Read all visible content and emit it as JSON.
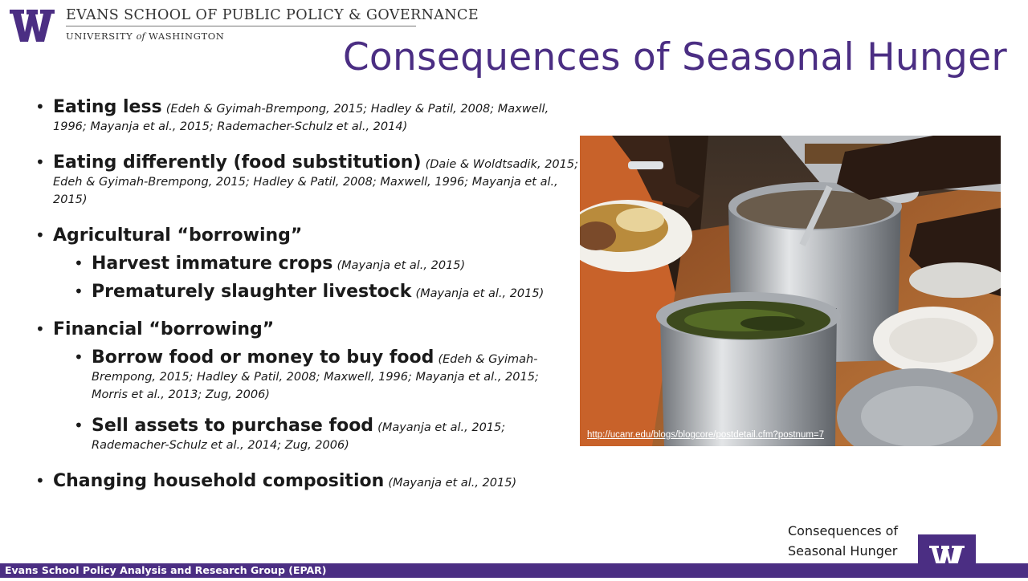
{
  "header": {
    "school": "EVANS SCHOOL OF PUBLIC POLICY & GOVERNANCE",
    "university_pre": "UNIVERSITY ",
    "university_of": "of",
    "university_post": " WASHINGTON"
  },
  "title": "Consequences of Seasonal Hunger",
  "bullets": [
    {
      "text": "Eating less",
      "citation": "(Edeh & Gyimah-Brempong, 2015; Hadley & Patil, 2008; Maxwell, 1996; Mayanja et al., 2015; Rademacher-Schulz et al., 2014)"
    },
    {
      "text": "Eating differently (food substitution)",
      "citation": "(Daie & Woldtsadik, 2015; Edeh & Gyimah-Brempong, 2015; Hadley & Patil, 2008; Maxwell, 1996; Mayanja et al., 2015)"
    },
    {
      "text": "Agricultural “borrowing”",
      "children": [
        {
          "text": "Harvest immature crops",
          "citation": "(Mayanja et al., 2015)"
        },
        {
          "text": "Prematurely slaughter livestock",
          "citation": "(Mayanja et al., 2015)"
        }
      ]
    },
    {
      "text": "Financial “borrowing”",
      "children": [
        {
          "text": "Borrow food or money to buy food",
          "citation": "(Edeh & Gyimah-Brempong, 2015; Hadley & Patil, 2008; Maxwell, 1996; Mayanja et al., 2015; Morris et al., 2013; Zug, 2006)"
        },
        {
          "text": "Sell assets to purchase food",
          "citation": "(Mayanja et al., 2015; Rademacher-Schulz et al., 2014; Zug, 2006)"
        }
      ]
    },
    {
      "text": "Changing household composition",
      "citation": "(Mayanja et al., 2015)"
    }
  ],
  "photo": {
    "link": "http://ucanr.edu/blogs/blogcore/postdetail.cfm?postnum=7"
  },
  "footer": {
    "org": "Evans School Policy Analysis and Research Group (EPAR)",
    "corner_line1": "Consequences of",
    "corner_line2": "Seasonal Hunger"
  },
  "colors": {
    "brand_purple": "#4b2e83",
    "text": "#1a1a1a"
  }
}
